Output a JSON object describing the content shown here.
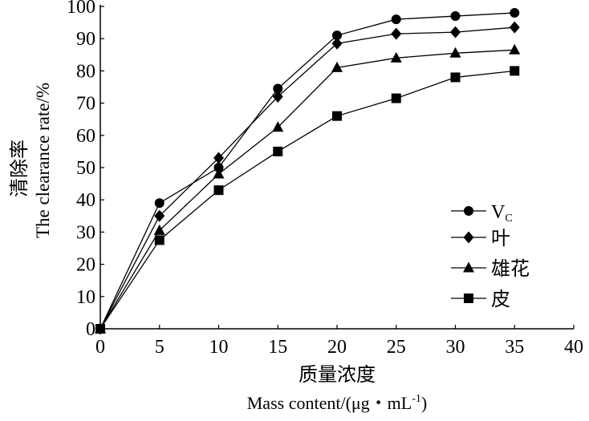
{
  "chart_data": {
    "type": "line",
    "title": "",
    "xlabel_cn": "质量浓度",
    "xlabel_en": "Mass content/(μg・mL",
    "xlabel_en_sup": "-1",
    "xlabel_en_end": ")",
    "ylabel_cn": "清除率",
    "ylabel_en": "The clearance rate/%",
    "xlim": [
      0,
      40
    ],
    "ylim": [
      0,
      100
    ],
    "xticks": [
      0,
      5,
      10,
      15,
      20,
      25,
      30,
      35,
      40
    ],
    "yticks": [
      0,
      10,
      20,
      30,
      40,
      50,
      60,
      70,
      80,
      90,
      100
    ],
    "grid": false,
    "legend_position": "bottom-right",
    "x": [
      0,
      5,
      10,
      15,
      20,
      25,
      30,
      35
    ],
    "series": [
      {
        "name": "V",
        "name_sub": "C",
        "marker": "circle",
        "values": [
          0,
          39,
          50,
          74.5,
          91,
          96,
          97,
          98
        ]
      },
      {
        "name": "叶",
        "marker": "diamond",
        "values": [
          0,
          35,
          53,
          72,
          88.5,
          91.5,
          92,
          93.5
        ]
      },
      {
        "name": "雄花",
        "marker": "triangle",
        "values": [
          0,
          30.5,
          48,
          62.5,
          81,
          84,
          85.5,
          86.5
        ]
      },
      {
        "name": "皮",
        "marker": "square",
        "values": [
          0,
          27.5,
          43,
          55,
          66,
          71.5,
          78,
          80
        ]
      }
    ]
  }
}
